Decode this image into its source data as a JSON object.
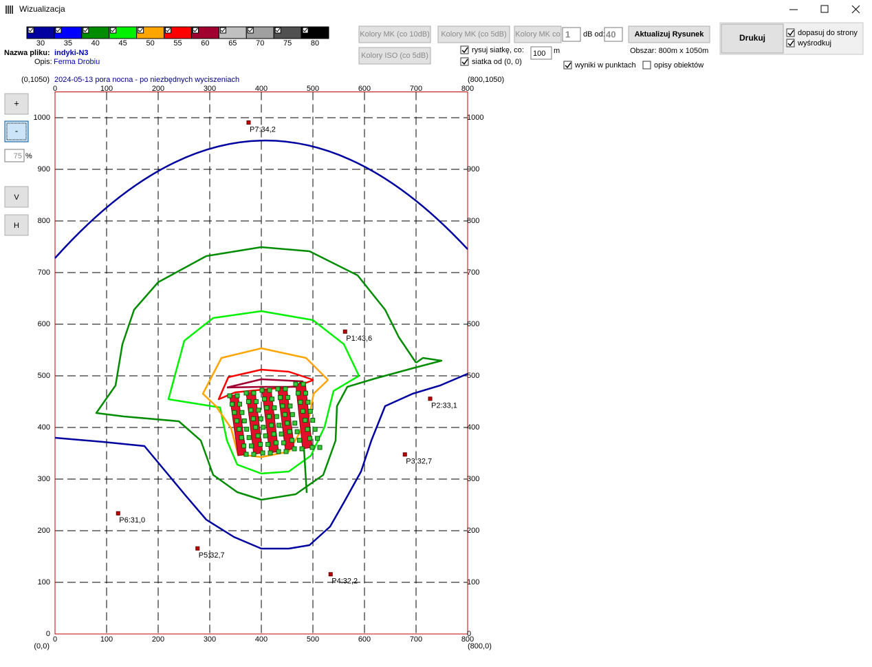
{
  "window": {
    "title": "Wizualizacja"
  },
  "legend": {
    "items": [
      {
        "level": 30,
        "color": "#0000a0"
      },
      {
        "level": 35,
        "color": "#0000ff"
      },
      {
        "level": 40,
        "color": "#008c00"
      },
      {
        "level": 45,
        "color": "#00f000"
      },
      {
        "level": 50,
        "color": "#ffa500"
      },
      {
        "level": 55,
        "color": "#ff0000"
      },
      {
        "level": 60,
        "color": "#a00030"
      },
      {
        "level": 65,
        "color": "#c0c0c0"
      },
      {
        "level": 70,
        "color": "#a0a0a0"
      },
      {
        "level": 75,
        "color": "#505050"
      },
      {
        "level": 80,
        "color": "#000000"
      }
    ]
  },
  "file": {
    "name_label": "Nazwa pliku:",
    "name": "indyki-N3",
    "desc_label": "Opis:",
    "desc": "Ferma Drobiu"
  },
  "toolbar": {
    "colors_mk_10": "Kolory MK (co 10dB)",
    "colors_mk_5": "Kolory MK (co 5dB)",
    "colors_mk_co": "Kolory MK co",
    "colors_iso": "Kolory ISO (co 5dB)",
    "step_input": "1",
    "db_from_label": "dB od:",
    "db_from_input": "40",
    "update": "Aktualizuj Rysunek",
    "area": "Obszar: 800m x 1050m",
    "grid_step_input": "100",
    "grid_unit": "m",
    "print": "Drukuj",
    "checkboxes": [
      {
        "label": "rysuj siatkę, co:",
        "checked": true
      },
      {
        "label": "siatka od (0, 0)",
        "checked": true
      },
      {
        "label": "wyniki w punktach",
        "checked": true
      },
      {
        "label": "opisy obiektów",
        "checked": false
      },
      {
        "label": "dopasuj do strony",
        "checked": true
      },
      {
        "label": "wyśrodkuj",
        "checked": true
      }
    ]
  },
  "side": {
    "zoom_in": "+",
    "zoom_out": "-",
    "zoom_input": "75",
    "zoom_unit": "%",
    "vertical": "V",
    "horizontal": "H"
  },
  "map": {
    "caption": "2024-05-13 pora nocna - po niezbędnych wyciszeniach",
    "corner_tl": "(0,1050)",
    "corner_tr": "(800,1050)",
    "corner_bl": "(0,0)",
    "corner_br": "(800,0)",
    "xlim": [
      0,
      800
    ],
    "ylim": [
      0,
      1050
    ],
    "xticks": [
      0,
      100,
      200,
      300,
      400,
      500,
      600,
      700,
      800
    ],
    "yticks": [
      0,
      100,
      200,
      300,
      400,
      500,
      600,
      700,
      800,
      900,
      1000
    ],
    "points": [
      {
        "label": "P1:43,6",
        "x": 563,
        "y": 585
      },
      {
        "label": "P2:33,1",
        "x": 728,
        "y": 455
      },
      {
        "label": "P3:32,7",
        "x": 679,
        "y": 347
      },
      {
        "label": "P4:32,2",
        "x": 535,
        "y": 115
      },
      {
        "label": "P5:32,7",
        "x": 277,
        "y": 165
      },
      {
        "label": "P6:31,0",
        "x": 123,
        "y": 233
      },
      {
        "label": "P7:34,2",
        "x": 376,
        "y": 990
      }
    ]
  }
}
